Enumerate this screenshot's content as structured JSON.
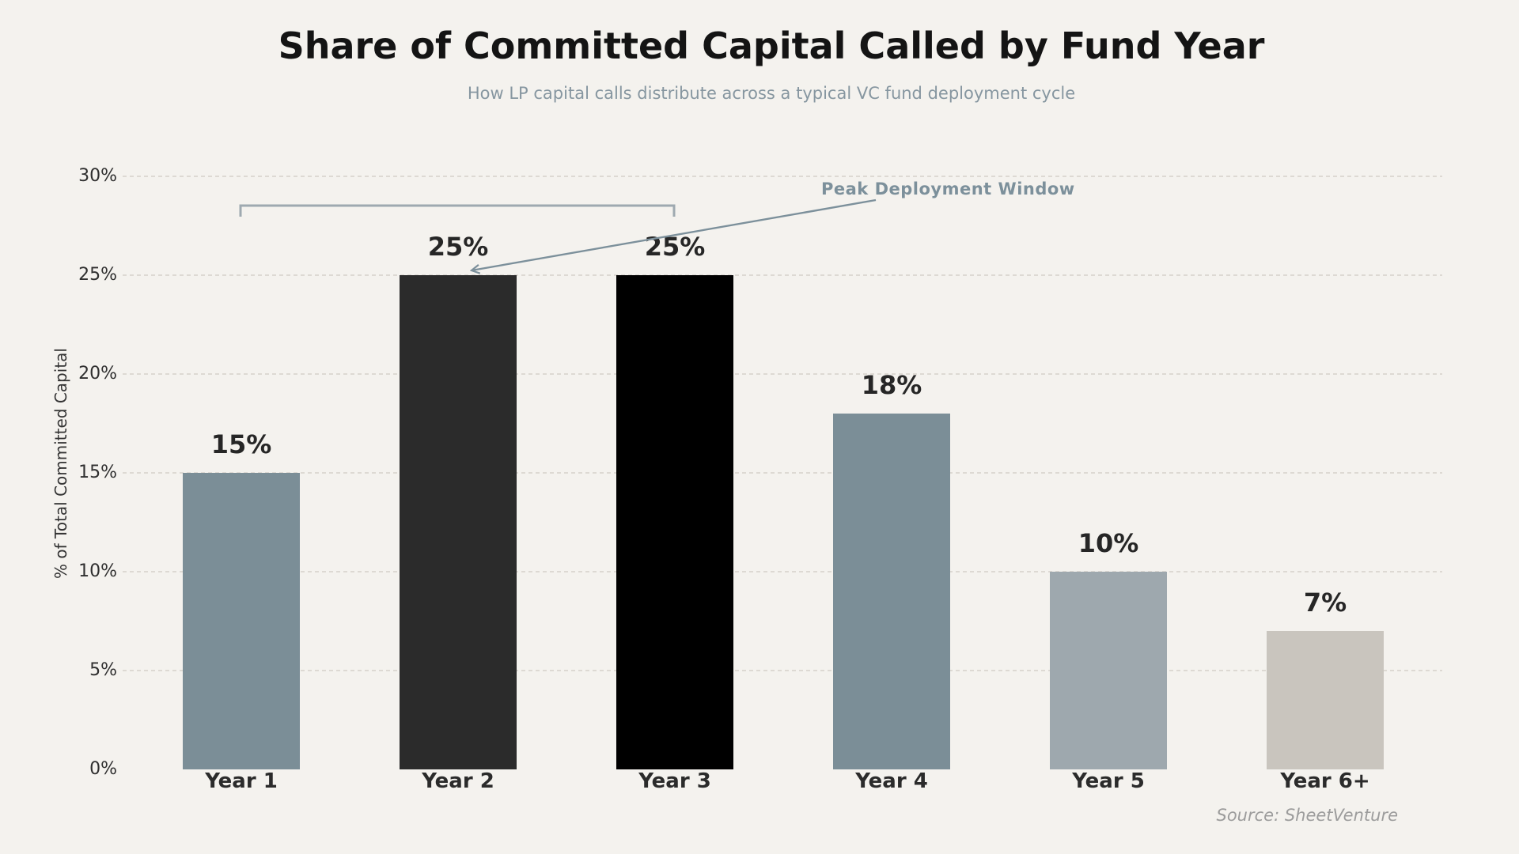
{
  "title": "Share of Committed Capital Called by Fund Year",
  "subtitle": "How LP capital calls distribute across a typical VC fund deployment cycle",
  "source": "Source: SheetVenture",
  "annotation": {
    "label": "Peak Deployment Window",
    "arrow_target": "top of Year 2 bar",
    "bracket_span": "Year 1 through Year 3"
  },
  "colors": {
    "background": "#F4F2EE",
    "title": "#141414",
    "subtitle": "#8696A0",
    "grid": "#DDD9D3",
    "annotation": "#7C909B",
    "bracket": "#9EA9B0",
    "value_label": "#262626",
    "source": "#9C9C9C"
  },
  "chart_data": {
    "type": "bar",
    "title": "Share of Committed Capital Called by Fund Year",
    "subtitle": "How LP capital calls distribute across a typical VC fund deployment cycle",
    "categories": [
      "Year 1",
      "Year 2",
      "Year 3",
      "Year 4",
      "Year 5",
      "Year 6+"
    ],
    "values": [
      15,
      25,
      25,
      18,
      10,
      7
    ],
    "value_labels": [
      "15%",
      "25%",
      "25%",
      "18%",
      "10%",
      "7%"
    ],
    "bar_colors": [
      "#7B8E97",
      "#2B2B2B",
      "#000000",
      "#7B8E97",
      "#9EA8AE",
      "#C9C5BE"
    ],
    "xlabel": "",
    "ylabel": "% of Total Committed Capital",
    "ylim": [
      0,
      30
    ],
    "yticks": [
      0,
      5,
      10,
      15,
      20,
      25,
      30
    ],
    "ytick_labels": [
      "0%",
      "5%",
      "10%",
      "15%",
      "20%",
      "25%",
      "30%"
    ],
    "grid": "horizontal dashed, no gridline at 0%",
    "legend": "none",
    "annotations": [
      {
        "type": "text-arrow",
        "text": "Peak Deployment Window",
        "points_to": "Year 2 bar top (25%)"
      },
      {
        "type": "bracket",
        "spans": [
          "Year 1",
          "Year 3"
        ],
        "position": "above bars near 28%"
      }
    ]
  }
}
